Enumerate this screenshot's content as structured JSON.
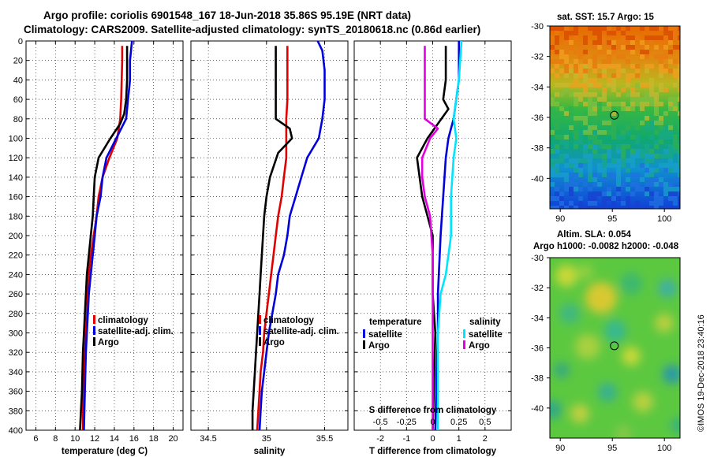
{
  "header": {
    "line1": "Argo profile: coriolis 6901548_167 18-Jun-2018 35.86S 95.19E (NRT data)",
    "line2": "Climatology: CARS2009. Satellite-adjusted climatology: synTS_20180618.nc (0.86d earlier)"
  },
  "watermark": "©IMOS 19-Dec-2018 23:40:16",
  "depth_ticks": [
    0,
    20,
    40,
    60,
    80,
    100,
    120,
    140,
    160,
    180,
    200,
    220,
    240,
    260,
    280,
    300,
    320,
    340,
    360,
    380,
    400
  ],
  "colors": {
    "climatology": "#e00000",
    "satellite": "#0000dd",
    "argo": "#000000",
    "cyan": "#00e5ff",
    "magenta": "#e000e0"
  },
  "chart_data": [
    {
      "type": "line",
      "id": "temperature",
      "xlabel": "temperature (deg C)",
      "ylabel": "depth",
      "xlim": [
        5,
        21
      ],
      "ylim": [
        400,
        0
      ],
      "xticks": [
        6,
        8,
        10,
        12,
        14,
        16,
        18,
        20
      ],
      "legend": [
        "climatology",
        "satellite-adj. clim.",
        "Argo"
      ],
      "series": [
        {
          "name": "climatology",
          "color": "#e00000",
          "points": [
            [
              14.8,
              5
            ],
            [
              14.8,
              20
            ],
            [
              14.7,
              60
            ],
            [
              14.6,
              80
            ],
            [
              14.3,
              100
            ],
            [
              13.5,
              120
            ],
            [
              12.8,
              140
            ],
            [
              12.4,
              160
            ],
            [
              12.2,
              180
            ],
            [
              11.9,
              200
            ],
            [
              11.6,
              220
            ],
            [
              11.4,
              240
            ],
            [
              11.3,
              260
            ],
            [
              11.2,
              280
            ],
            [
              11.1,
              300
            ],
            [
              11.0,
              320
            ],
            [
              10.9,
              340
            ],
            [
              10.85,
              360
            ],
            [
              10.8,
              380
            ],
            [
              10.8,
              400
            ]
          ]
        },
        {
          "name": "satellite-adj. clim.",
          "color": "#0000dd",
          "points": [
            [
              15.8,
              0
            ],
            [
              15.6,
              20
            ],
            [
              15.6,
              40
            ],
            [
              15.4,
              60
            ],
            [
              15.2,
              80
            ],
            [
              14.2,
              100
            ],
            [
              13.2,
              120
            ],
            [
              12.8,
              140
            ],
            [
              12.6,
              160
            ],
            [
              12.2,
              180
            ],
            [
              12.0,
              200
            ],
            [
              11.8,
              220
            ],
            [
              11.6,
              240
            ],
            [
              11.4,
              260
            ],
            [
              11.3,
              280
            ],
            [
              11.2,
              300
            ],
            [
              11.1,
              320
            ],
            [
              11.05,
              340
            ],
            [
              11.0,
              360
            ],
            [
              10.95,
              380
            ],
            [
              10.9,
              400
            ]
          ]
        },
        {
          "name": "Argo",
          "color": "#000000",
          "points": [
            [
              15.3,
              5
            ],
            [
              15.3,
              40
            ],
            [
              15.2,
              60
            ],
            [
              15.0,
              75
            ],
            [
              14.6,
              85
            ],
            [
              13.6,
              100
            ],
            [
              12.4,
              120
            ],
            [
              12.0,
              140
            ],
            [
              11.9,
              160
            ],
            [
              11.8,
              180
            ],
            [
              11.6,
              200
            ],
            [
              11.4,
              220
            ],
            [
              11.2,
              240
            ],
            [
              11.1,
              260
            ],
            [
              11.0,
              280
            ],
            [
              10.9,
              300
            ],
            [
              10.8,
              320
            ],
            [
              10.75,
              340
            ],
            [
              10.7,
              360
            ],
            [
              10.6,
              380
            ],
            [
              10.5,
              400
            ]
          ]
        }
      ]
    },
    {
      "type": "line",
      "id": "salinity",
      "xlabel": "salinity",
      "xlim": [
        34.35,
        35.7
      ],
      "ylim": [
        400,
        0
      ],
      "xticks": [
        34.5,
        35,
        35.5
      ],
      "xticklabels": [
        "34.5",
        "35",
        "35.5"
      ],
      "legend": [
        "climatology",
        "satellite-adj. clim.",
        "Argo"
      ],
      "series": [
        {
          "name": "climatology",
          "color": "#e00000",
          "points": [
            [
              35.18,
              5
            ],
            [
              35.18,
              60
            ],
            [
              35.17,
              80
            ],
            [
              35.17,
              100
            ],
            [
              35.17,
              120
            ],
            [
              35.15,
              140
            ],
            [
              35.13,
              160
            ],
            [
              35.1,
              180
            ],
            [
              35.08,
              200
            ],
            [
              35.06,
              220
            ],
            [
              35.04,
              240
            ],
            [
              35.02,
              260
            ],
            [
              35.0,
              280
            ],
            [
              34.98,
              300
            ],
            [
              34.97,
              320
            ],
            [
              34.95,
              340
            ],
            [
              34.94,
              360
            ],
            [
              34.93,
              380
            ],
            [
              34.92,
              400
            ]
          ]
        },
        {
          "name": "satellite-adj. clim.",
          "color": "#0000dd",
          "points": [
            [
              35.44,
              0
            ],
            [
              35.48,
              10
            ],
            [
              35.5,
              30
            ],
            [
              35.5,
              60
            ],
            [
              35.48,
              80
            ],
            [
              35.45,
              100
            ],
            [
              35.35,
              120
            ],
            [
              35.3,
              140
            ],
            [
              35.25,
              160
            ],
            [
              35.2,
              180
            ],
            [
              35.18,
              200
            ],
            [
              35.15,
              220
            ],
            [
              35.1,
              240
            ],
            [
              35.08,
              260
            ],
            [
              35.05,
              280
            ],
            [
              35.02,
              300
            ],
            [
              35.0,
              320
            ],
            [
              34.98,
              340
            ],
            [
              34.96,
              360
            ],
            [
              34.95,
              380
            ],
            [
              34.94,
              400
            ]
          ]
        },
        {
          "name": "Argo",
          "color": "#000000",
          "points": [
            [
              35.08,
              5
            ],
            [
              35.08,
              60
            ],
            [
              35.08,
              80
            ],
            [
              35.2,
              90
            ],
            [
              35.22,
              100
            ],
            [
              35.1,
              115
            ],
            [
              35.03,
              140
            ],
            [
              35.0,
              160
            ],
            [
              34.98,
              180
            ],
            [
              34.97,
              200
            ],
            [
              34.96,
              220
            ],
            [
              34.95,
              240
            ],
            [
              34.94,
              260
            ],
            [
              34.93,
              280
            ],
            [
              34.92,
              300
            ],
            [
              34.91,
              320
            ],
            [
              34.9,
              340
            ],
            [
              34.89,
              360
            ],
            [
              34.88,
              380
            ],
            [
              34.88,
              400
            ]
          ]
        }
      ]
    },
    {
      "type": "line",
      "id": "difference",
      "xlabel": "T difference from climatology",
      "xlim": [
        -3,
        3
      ],
      "ylim": [
        400,
        0
      ],
      "xticks": [
        -2,
        -1,
        0,
        1,
        2
      ],
      "top_label": "S difference from climatology",
      "s_ticklabels": [
        "-0.5",
        "-0.25",
        "0",
        "0.25",
        "0.5"
      ],
      "legend_left_title": "temperature",
      "legend_right_title": "salinity",
      "legend_left": [
        "satellite",
        "Argo"
      ],
      "legend_right": [
        "satellite",
        "Argo"
      ],
      "series": [
        {
          "name": "temperature satellite",
          "color": "#0000dd",
          "points": [
            [
              1.0,
              0
            ],
            [
              1.0,
              40
            ],
            [
              0.8,
              80
            ],
            [
              0.6,
              100
            ],
            [
              0.5,
              120
            ],
            [
              0.4,
              160
            ],
            [
              0.3,
              200
            ],
            [
              0.2,
              260
            ],
            [
              0.2,
              300
            ],
            [
              0.15,
              340
            ],
            [
              0.1,
              400
            ]
          ]
        },
        {
          "name": "temperature Argo",
          "color": "#000000",
          "points": [
            [
              0.5,
              5
            ],
            [
              0.5,
              40
            ],
            [
              0.4,
              60
            ],
            [
              0.6,
              70
            ],
            [
              0.2,
              85
            ],
            [
              -0.2,
              100
            ],
            [
              -0.6,
              120
            ],
            [
              -0.5,
              140
            ],
            [
              -0.4,
              160
            ],
            [
              -0.2,
              180
            ],
            [
              0.0,
              200
            ],
            [
              0.0,
              260
            ],
            [
              0.1,
              300
            ],
            [
              0.0,
              400
            ]
          ]
        },
        {
          "name": "salinity satellite",
          "color": "#00e5ff",
          "points": [
            [
              1.1,
              0
            ],
            [
              1.0,
              40
            ],
            [
              0.8,
              80
            ],
            [
              0.9,
              100
            ],
            [
              0.8,
              120
            ],
            [
              0.7,
              160
            ],
            [
              0.7,
              200
            ],
            [
              0.5,
              240
            ],
            [
              0.3,
              260
            ],
            [
              0.2,
              300
            ],
            [
              0.2,
              400
            ]
          ]
        },
        {
          "name": "salinity Argo",
          "color": "#e000e0",
          "points": [
            [
              -0.3,
              5
            ],
            [
              -0.3,
              60
            ],
            [
              -0.3,
              80
            ],
            [
              0.2,
              90
            ],
            [
              -0.1,
              100
            ],
            [
              -0.4,
              120
            ],
            [
              -0.4,
              140
            ],
            [
              -0.3,
              160
            ],
            [
              -0.1,
              180
            ],
            [
              0.0,
              220
            ],
            [
              0.0,
              400
            ]
          ]
        }
      ]
    },
    {
      "type": "heatmap",
      "id": "sst_map",
      "title": "sat. SST: 15.7 Argo: 15",
      "xlim": [
        89,
        101.5
      ],
      "ylim": [
        -42,
        -30
      ],
      "xticks": [
        90,
        95,
        100
      ],
      "yticks": [
        -30,
        -32,
        -34,
        -36,
        -38,
        -40
      ],
      "marker": [
        95.19,
        -35.86
      ]
    },
    {
      "type": "heatmap",
      "id": "sla_map",
      "title_line1": "Altim. SLA: 0.054",
      "title_line2": "Argo h1000: -0.0082 h2000: -0.048",
      "xlim": [
        89,
        101.5
      ],
      "ylim": [
        -42,
        -30
      ],
      "xticks": [
        90,
        95,
        100
      ],
      "yticks": [
        -30,
        -32,
        -34,
        -36,
        -38,
        -40
      ],
      "marker": [
        95.19,
        -35.86
      ]
    }
  ]
}
